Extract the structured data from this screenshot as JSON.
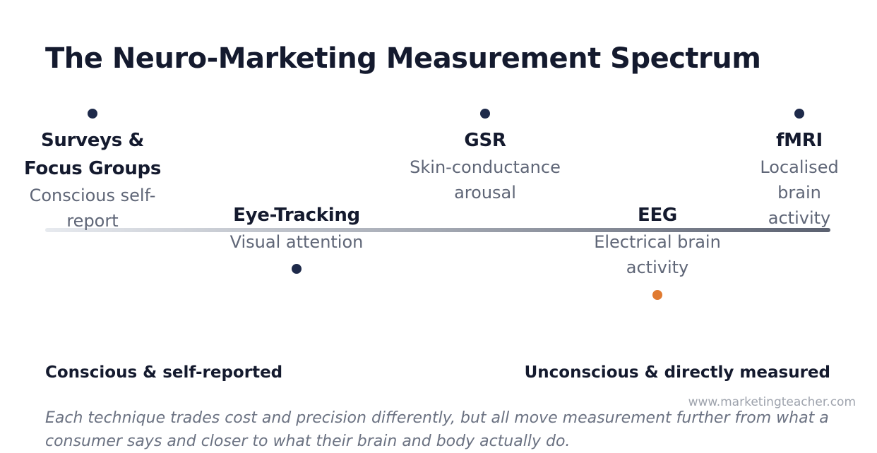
{
  "title": "The Neuro-Marketing Measurement Spectrum",
  "items": [
    {
      "label_lines": [
        "Surveys &",
        "Focus Groups"
      ],
      "desc_lines": [
        "Conscious self-",
        "report"
      ]
    },
    {
      "label_lines": [
        "Eye-Tracking"
      ],
      "desc_lines": [
        "Visual attention"
      ]
    },
    {
      "label_lines": [
        "GSR"
      ],
      "desc_lines": [
        "Skin-conductance",
        "arousal"
      ]
    },
    {
      "label_lines": [
        "EEG"
      ],
      "desc_lines": [
        "Electrical brain",
        "activity"
      ]
    },
    {
      "label_lines": [
        "fMRI"
      ],
      "desc_lines": [
        "Localised brain",
        "activity"
      ]
    }
  ],
  "colors": {
    "dot": "#1e2a4a",
    "highlight_dot": "#e07a30",
    "spectrum_start": "#e7eaef",
    "spectrum_end": "#5b6170"
  },
  "left_end_label": "Conscious & self-reported",
  "right_end_label": "Unconscious & directly measured",
  "watermark": "www.marketingteacher.com",
  "footnote_lines": [
    "Each technique trades cost and precision differently, but all move measurement further from what a",
    "consumer says and closer to what their brain and body actually do."
  ]
}
